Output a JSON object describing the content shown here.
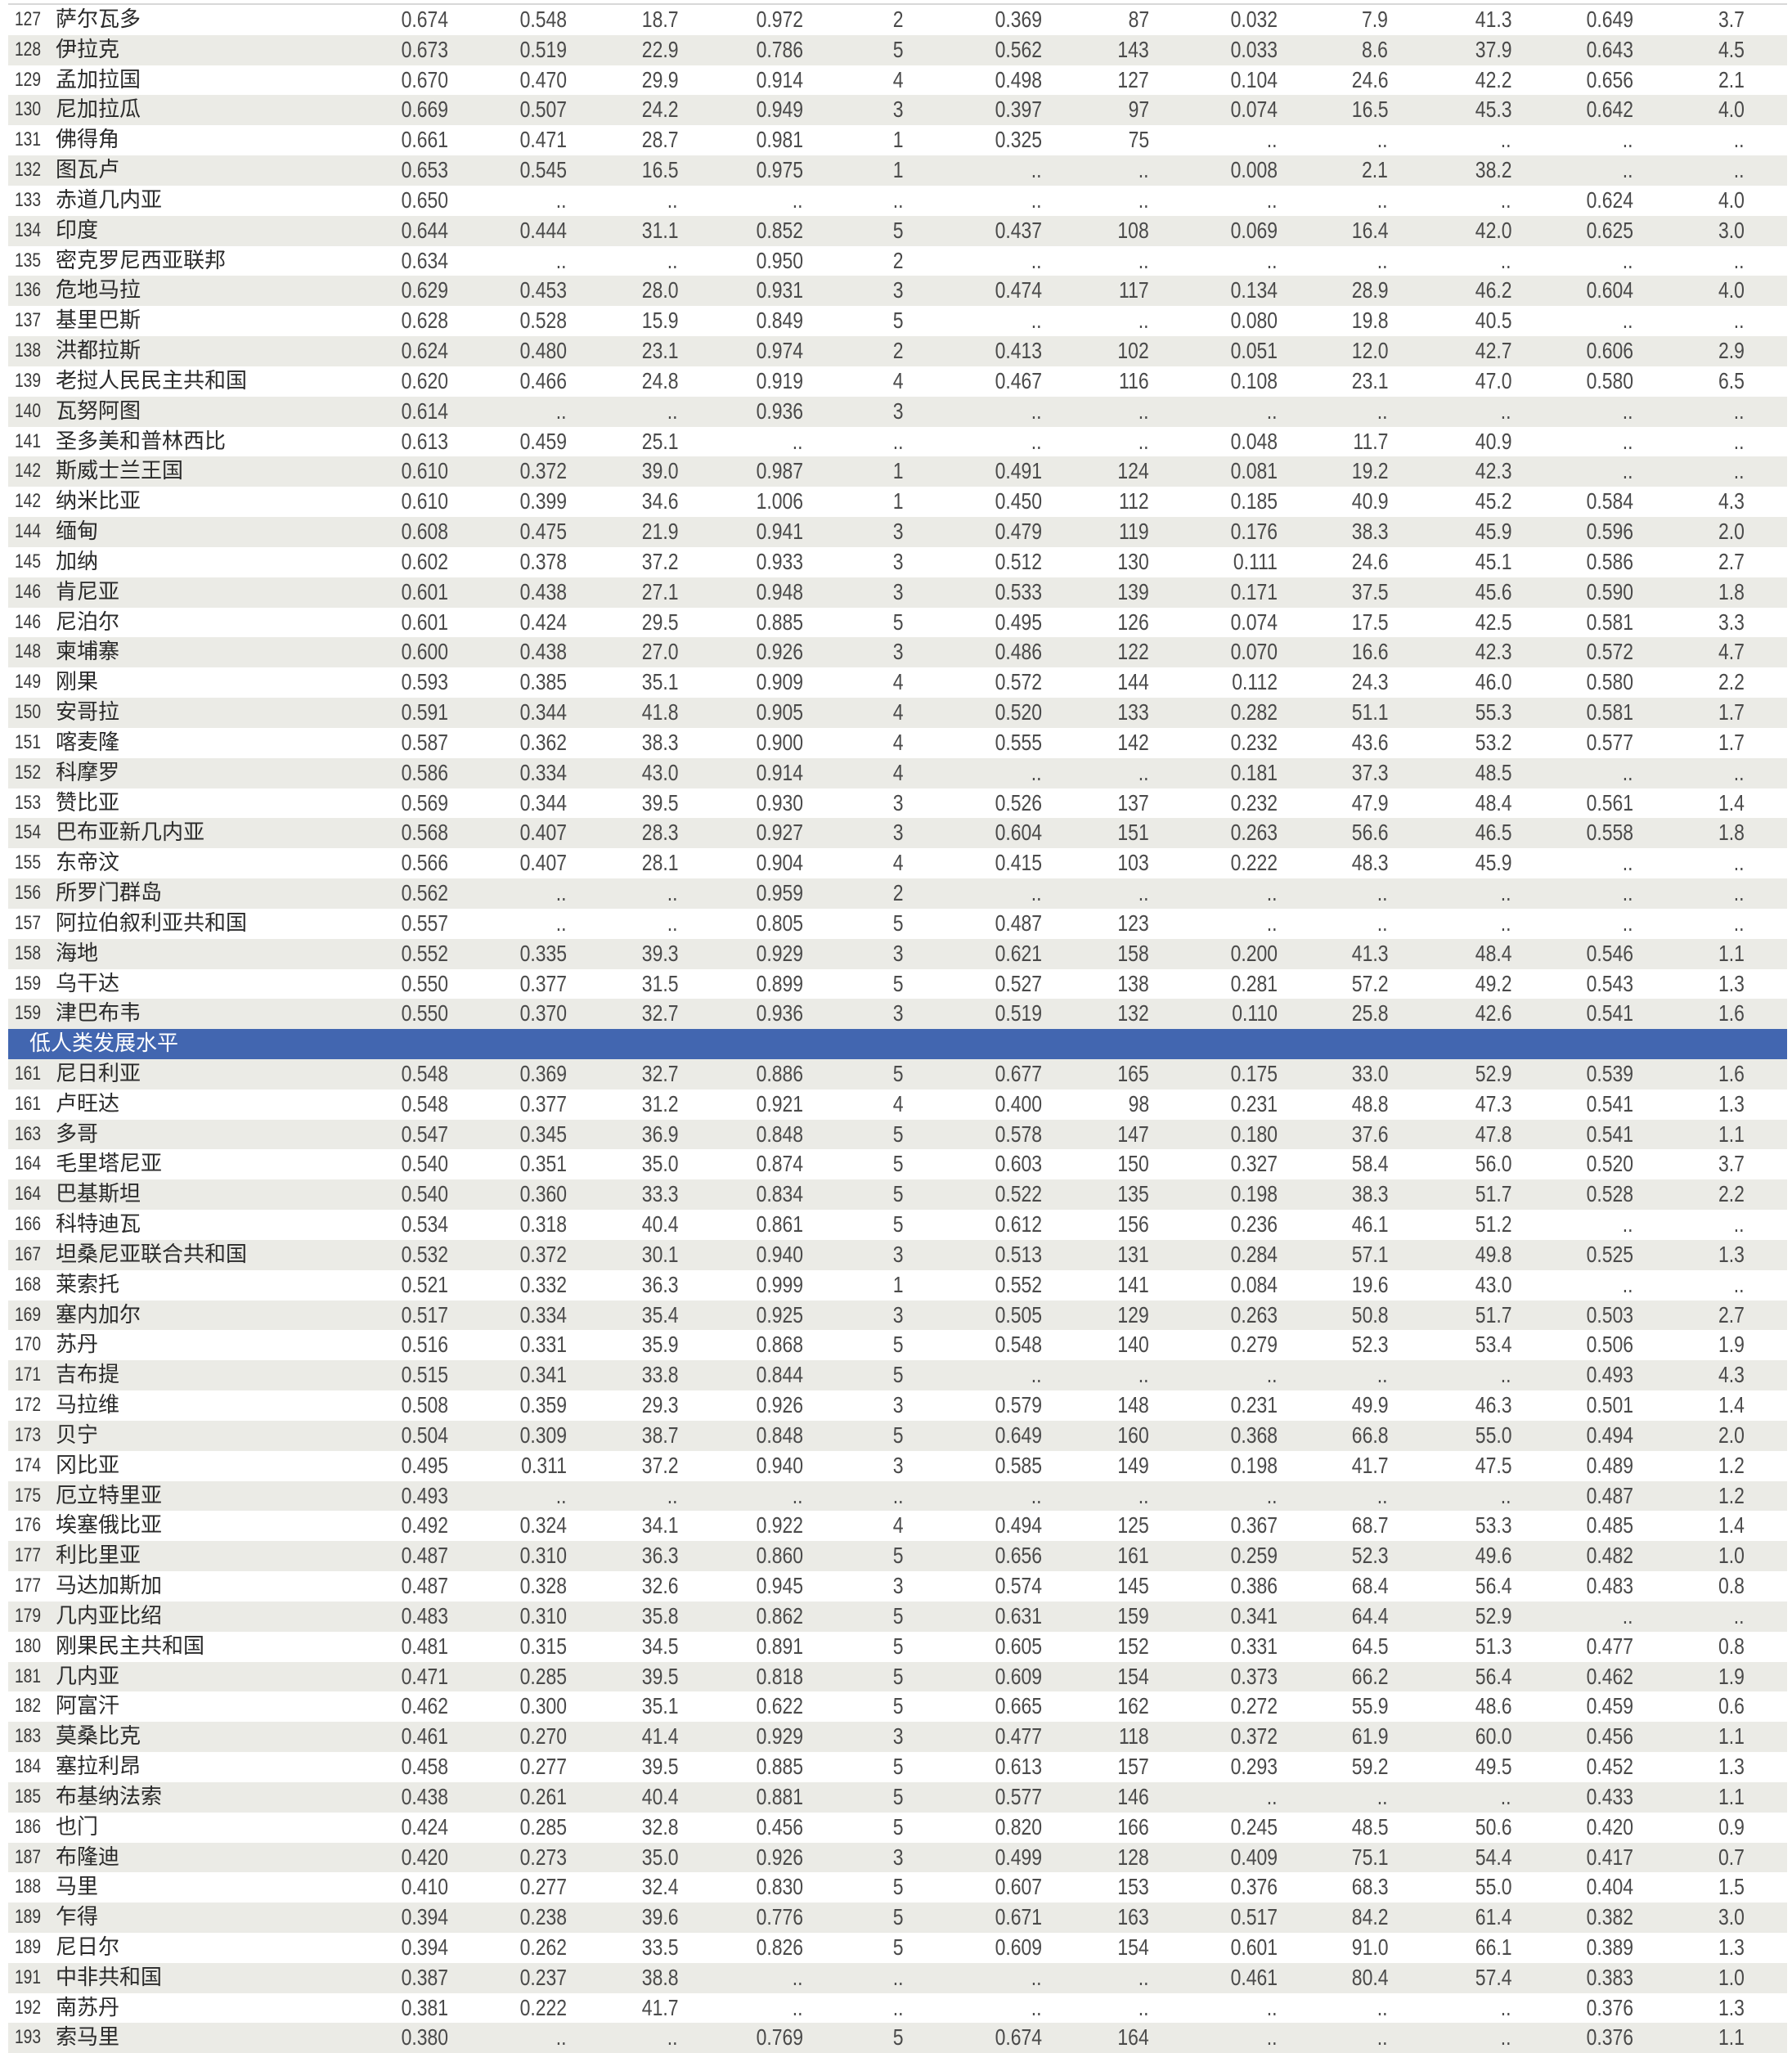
{
  "colors": {
    "group_header": "#4266b0",
    "stripe": "#ebebe6"
  },
  "rows_top": [
    [
      "127",
      "萨尔瓦多",
      "0.674",
      "0.548",
      "18.7",
      "0.972",
      "2",
      "0.369",
      "87",
      "0.032",
      "7.9",
      "41.3",
      "0.649",
      "3.7"
    ],
    [
      "128",
      "伊拉克",
      "0.673",
      "0.519",
      "22.9",
      "0.786",
      "5",
      "0.562",
      "143",
      "0.033",
      "8.6",
      "37.9",
      "0.643",
      "4.5"
    ],
    [
      "129",
      "孟加拉国",
      "0.670",
      "0.470",
      "29.9",
      "0.914",
      "4",
      "0.498",
      "127",
      "0.104",
      "24.6",
      "42.2",
      "0.656",
      "2.1"
    ],
    [
      "130",
      "尼加拉瓜",
      "0.669",
      "0.507",
      "24.2",
      "0.949",
      "3",
      "0.397",
      "97",
      "0.074",
      "16.5",
      "45.3",
      "0.642",
      "4.0"
    ],
    [
      "131",
      "佛得角",
      "0.661",
      "0.471",
      "28.7",
      "0.981",
      "1",
      "0.325",
      "75",
      "..",
      "..",
      "..",
      "..",
      ".."
    ],
    [
      "132",
      "图瓦卢",
      "0.653",
      "0.545",
      "16.5",
      "0.975",
      "1",
      "..",
      "..",
      "0.008",
      "2.1",
      "38.2",
      "..",
      ".."
    ],
    [
      "133",
      "赤道几内亚",
      "0.650",
      "..",
      "..",
      "..",
      "..",
      "..",
      "..",
      "..",
      "..",
      "..",
      "0.624",
      "4.0"
    ],
    [
      "134",
      "印度",
      "0.644",
      "0.444",
      "31.1",
      "0.852",
      "5",
      "0.437",
      "108",
      "0.069",
      "16.4",
      "42.0",
      "0.625",
      "3.0"
    ],
    [
      "135",
      "密克罗尼西亚联邦",
      "0.634",
      "..",
      "..",
      "0.950",
      "2",
      "..",
      "..",
      "..",
      "..",
      "..",
      "..",
      ".."
    ],
    [
      "136",
      "危地马拉",
      "0.629",
      "0.453",
      "28.0",
      "0.931",
      "3",
      "0.474",
      "117",
      "0.134",
      "28.9",
      "46.2",
      "0.604",
      "4.0"
    ],
    [
      "137",
      "基里巴斯",
      "0.628",
      "0.528",
      "15.9",
      "0.849",
      "5",
      "..",
      "..",
      "0.080",
      "19.8",
      "40.5",
      "..",
      ".."
    ],
    [
      "138",
      "洪都拉斯",
      "0.624",
      "0.480",
      "23.1",
      "0.974",
      "2",
      "0.413",
      "102",
      "0.051",
      "12.0",
      "42.7",
      "0.606",
      "2.9"
    ],
    [
      "139",
      "老挝人民民主共和国",
      "0.620",
      "0.466",
      "24.8",
      "0.919",
      "4",
      "0.467",
      "116",
      "0.108",
      "23.1",
      "47.0",
      "0.580",
      "6.5"
    ],
    [
      "140",
      "瓦努阿图",
      "0.614",
      "..",
      "..",
      "0.936",
      "3",
      "..",
      "..",
      "..",
      "..",
      "..",
      "..",
      ".."
    ],
    [
      "141",
      "圣多美和普林西比",
      "0.613",
      "0.459",
      "25.1",
      "..",
      "..",
      "..",
      "..",
      "0.048",
      "11.7",
      "40.9",
      "..",
      ".."
    ],
    [
      "142",
      "斯威士兰王国",
      "0.610",
      "0.372",
      "39.0",
      "0.987",
      "1",
      "0.491",
      "124",
      "0.081",
      "19.2",
      "42.3",
      "..",
      ".."
    ],
    [
      "142",
      "纳米比亚",
      "0.610",
      "0.399",
      "34.6",
      "1.006",
      "1",
      "0.450",
      "112",
      "0.185",
      "40.9",
      "45.2",
      "0.584",
      "4.3"
    ],
    [
      "144",
      "缅甸",
      "0.608",
      "0.475",
      "21.9",
      "0.941",
      "3",
      "0.479",
      "119",
      "0.176",
      "38.3",
      "45.9",
      "0.596",
      "2.0"
    ],
    [
      "145",
      "加纳",
      "0.602",
      "0.378",
      "37.2",
      "0.933",
      "3",
      "0.512",
      "130",
      "0.111",
      "24.6",
      "45.1",
      "0.586",
      "2.7"
    ],
    [
      "146",
      "肯尼亚",
      "0.601",
      "0.438",
      "27.1",
      "0.948",
      "3",
      "0.533",
      "139",
      "0.171",
      "37.5",
      "45.6",
      "0.590",
      "1.8"
    ],
    [
      "146",
      "尼泊尔",
      "0.601",
      "0.424",
      "29.5",
      "0.885",
      "5",
      "0.495",
      "126",
      "0.074",
      "17.5",
      "42.5",
      "0.581",
      "3.3"
    ],
    [
      "148",
      "柬埔寨",
      "0.600",
      "0.438",
      "27.0",
      "0.926",
      "3",
      "0.486",
      "122",
      "0.070",
      "16.6",
      "42.3",
      "0.572",
      "4.7"
    ],
    [
      "149",
      "刚果",
      "0.593",
      "0.385",
      "35.1",
      "0.909",
      "4",
      "0.572",
      "144",
      "0.112",
      "24.3",
      "46.0",
      "0.580",
      "2.2"
    ],
    [
      "150",
      "安哥拉",
      "0.591",
      "0.344",
      "41.8",
      "0.905",
      "4",
      "0.520",
      "133",
      "0.282",
      "51.1",
      "55.3",
      "0.581",
      "1.7"
    ],
    [
      "151",
      "喀麦隆",
      "0.587",
      "0.362",
      "38.3",
      "0.900",
      "4",
      "0.555",
      "142",
      "0.232",
      "43.6",
      "53.2",
      "0.577",
      "1.7"
    ],
    [
      "152",
      "科摩罗",
      "0.586",
      "0.334",
      "43.0",
      "0.914",
      "4",
      "..",
      "..",
      "0.181",
      "37.3",
      "48.5",
      "..",
      ".."
    ],
    [
      "153",
      "赞比亚",
      "0.569",
      "0.344",
      "39.5",
      "0.930",
      "3",
      "0.526",
      "137",
      "0.232",
      "47.9",
      "48.4",
      "0.561",
      "1.4"
    ],
    [
      "154",
      "巴布亚新几内亚",
      "0.568",
      "0.407",
      "28.3",
      "0.927",
      "3",
      "0.604",
      "151",
      "0.263",
      "56.6",
      "46.5",
      "0.558",
      "1.8"
    ],
    [
      "155",
      "东帝汶",
      "0.566",
      "0.407",
      "28.1",
      "0.904",
      "4",
      "0.415",
      "103",
      "0.222",
      "48.3",
      "45.9",
      "..",
      ".."
    ],
    [
      "156",
      "所罗门群岛",
      "0.562",
      "..",
      "..",
      "0.959",
      "2",
      "..",
      "..",
      "..",
      "..",
      "..",
      "..",
      ".."
    ],
    [
      "157",
      "阿拉伯叙利亚共和国",
      "0.557",
      "..",
      "..",
      "0.805",
      "5",
      "0.487",
      "123",
      "..",
      "..",
      "..",
      "..",
      ".."
    ],
    [
      "158",
      "海地",
      "0.552",
      "0.335",
      "39.3",
      "0.929",
      "3",
      "0.621",
      "158",
      "0.200",
      "41.3",
      "48.4",
      "0.546",
      "1.1"
    ],
    [
      "159",
      "乌干达",
      "0.550",
      "0.377",
      "31.5",
      "0.899",
      "5",
      "0.527",
      "138",
      "0.281",
      "57.2",
      "49.2",
      "0.543",
      "1.3"
    ],
    [
      "159",
      "津巴布韦",
      "0.550",
      "0.370",
      "32.7",
      "0.936",
      "3",
      "0.519",
      "132",
      "0.110",
      "25.8",
      "42.6",
      "0.541",
      "1.6"
    ]
  ],
  "group_header": "低人类发展水平",
  "rows_bottom": [
    [
      "161",
      "尼日利亚",
      "0.548",
      "0.369",
      "32.7",
      "0.886",
      "5",
      "0.677",
      "165",
      "0.175",
      "33.0",
      "52.9",
      "0.539",
      "1.6"
    ],
    [
      "161",
      "卢旺达",
      "0.548",
      "0.377",
      "31.2",
      "0.921",
      "4",
      "0.400",
      "98",
      "0.231",
      "48.8",
      "47.3",
      "0.541",
      "1.3"
    ],
    [
      "163",
      "多哥",
      "0.547",
      "0.345",
      "36.9",
      "0.848",
      "5",
      "0.578",
      "147",
      "0.180",
      "37.6",
      "47.8",
      "0.541",
      "1.1"
    ],
    [
      "164",
      "毛里塔尼亚",
      "0.540",
      "0.351",
      "35.0",
      "0.874",
      "5",
      "0.603",
      "150",
      "0.327",
      "58.4",
      "56.0",
      "0.520",
      "3.7"
    ],
    [
      "164",
      "巴基斯坦",
      "0.540",
      "0.360",
      "33.3",
      "0.834",
      "5",
      "0.522",
      "135",
      "0.198",
      "38.3",
      "51.7",
      "0.528",
      "2.2"
    ],
    [
      "166",
      "科特迪瓦",
      "0.534",
      "0.318",
      "40.4",
      "0.861",
      "5",
      "0.612",
      "156",
      "0.236",
      "46.1",
      "51.2",
      "..",
      ".."
    ],
    [
      "167",
      "坦桑尼亚联合共和国",
      "0.532",
      "0.372",
      "30.1",
      "0.940",
      "3",
      "0.513",
      "131",
      "0.284",
      "57.1",
      "49.8",
      "0.525",
      "1.3"
    ],
    [
      "168",
      "莱索托",
      "0.521",
      "0.332",
      "36.3",
      "0.999",
      "1",
      "0.552",
      "141",
      "0.084",
      "19.6",
      "43.0",
      "..",
      ".."
    ],
    [
      "169",
      "塞内加尔",
      "0.517",
      "0.334",
      "35.4",
      "0.925",
      "3",
      "0.505",
      "129",
      "0.263",
      "50.8",
      "51.7",
      "0.503",
      "2.7"
    ],
    [
      "170",
      "苏丹",
      "0.516",
      "0.331",
      "35.9",
      "0.868",
      "5",
      "0.548",
      "140",
      "0.279",
      "52.3",
      "53.4",
      "0.506",
      "1.9"
    ],
    [
      "171",
      "吉布提",
      "0.515",
      "0.341",
      "33.8",
      "0.844",
      "5",
      "..",
      "..",
      "..",
      "..",
      "..",
      "0.493",
      "4.3"
    ],
    [
      "172",
      "马拉维",
      "0.508",
      "0.359",
      "29.3",
      "0.926",
      "3",
      "0.579",
      "148",
      "0.231",
      "49.9",
      "46.3",
      "0.501",
      "1.4"
    ],
    [
      "173",
      "贝宁",
      "0.504",
      "0.309",
      "38.7",
      "0.848",
      "5",
      "0.649",
      "160",
      "0.368",
      "66.8",
      "55.0",
      "0.494",
      "2.0"
    ],
    [
      "174",
      "冈比亚",
      "0.495",
      "0.311",
      "37.2",
      "0.940",
      "3",
      "0.585",
      "149",
      "0.198",
      "41.7",
      "47.5",
      "0.489",
      "1.2"
    ],
    [
      "175",
      "厄立特里亚",
      "0.493",
      "..",
      "..",
      "..",
      "..",
      "..",
      "..",
      "..",
      "..",
      "..",
      "0.487",
      "1.2"
    ],
    [
      "176",
      "埃塞俄比亚",
      "0.492",
      "0.324",
      "34.1",
      "0.922",
      "4",
      "0.494",
      "125",
      "0.367",
      "68.7",
      "53.3",
      "0.485",
      "1.4"
    ],
    [
      "177",
      "利比里亚",
      "0.487",
      "0.310",
      "36.3",
      "0.860",
      "5",
      "0.656",
      "161",
      "0.259",
      "52.3",
      "49.6",
      "0.482",
      "1.0"
    ],
    [
      "177",
      "马达加斯加",
      "0.487",
      "0.328",
      "32.6",
      "0.945",
      "3",
      "0.574",
      "145",
      "0.386",
      "68.4",
      "56.4",
      "0.483",
      "0.8"
    ],
    [
      "179",
      "几内亚比绍",
      "0.483",
      "0.310",
      "35.8",
      "0.862",
      "5",
      "0.631",
      "159",
      "0.341",
      "64.4",
      "52.9",
      "..",
      ".."
    ],
    [
      "180",
      "刚果民主共和国",
      "0.481",
      "0.315",
      "34.5",
      "0.891",
      "5",
      "0.605",
      "152",
      "0.331",
      "64.5",
      "51.3",
      "0.477",
      "0.8"
    ],
    [
      "181",
      "几内亚",
      "0.471",
      "0.285",
      "39.5",
      "0.818",
      "5",
      "0.609",
      "154",
      "0.373",
      "66.2",
      "56.4",
      "0.462",
      "1.9"
    ],
    [
      "182",
      "阿富汗",
      "0.462",
      "0.300",
      "35.1",
      "0.622",
      "5",
      "0.665",
      "162",
      "0.272",
      "55.9",
      "48.6",
      "0.459",
      "0.6"
    ],
    [
      "183",
      "莫桑比克",
      "0.461",
      "0.270",
      "41.4",
      "0.929",
      "3",
      "0.477",
      "118",
      "0.372",
      "61.9",
      "60.0",
      "0.456",
      "1.1"
    ],
    [
      "184",
      "塞拉利昂",
      "0.458",
      "0.277",
      "39.5",
      "0.885",
      "5",
      "0.613",
      "157",
      "0.293",
      "59.2",
      "49.5",
      "0.452",
      "1.3"
    ],
    [
      "185",
      "布基纳法索",
      "0.438",
      "0.261",
      "40.4",
      "0.881",
      "5",
      "0.577",
      "146",
      "..",
      "..",
      "..",
      "0.433",
      "1.1"
    ],
    [
      "186",
      "也门",
      "0.424",
      "0.285",
      "32.8",
      "0.456",
      "5",
      "0.820",
      "166",
      "0.245",
      "48.5",
      "50.6",
      "0.420",
      "0.9"
    ],
    [
      "187",
      "布隆迪",
      "0.420",
      "0.273",
      "35.0",
      "0.926",
      "3",
      "0.499",
      "128",
      "0.409",
      "75.1",
      "54.4",
      "0.417",
      "0.7"
    ],
    [
      "188",
      "马里",
      "0.410",
      "0.277",
      "32.4",
      "0.830",
      "5",
      "0.607",
      "153",
      "0.376",
      "68.3",
      "55.0",
      "0.404",
      "1.5"
    ],
    [
      "189",
      "乍得",
      "0.394",
      "0.238",
      "39.6",
      "0.776",
      "5",
      "0.671",
      "163",
      "0.517",
      "84.2",
      "61.4",
      "0.382",
      "3.0"
    ],
    [
      "189",
      "尼日尔",
      "0.394",
      "0.262",
      "33.5",
      "0.826",
      "5",
      "0.609",
      "154",
      "0.601",
      "91.0",
      "66.1",
      "0.389",
      "1.3"
    ],
    [
      "191",
      "中非共和国",
      "0.387",
      "0.237",
      "38.8",
      "..",
      "..",
      "..",
      "..",
      "0.461",
      "80.4",
      "57.4",
      "0.383",
      "1.0"
    ],
    [
      "192",
      "南苏丹",
      "0.381",
      "0.222",
      "41.7",
      "..",
      "..",
      "..",
      "..",
      "..",
      "..",
      "..",
      "0.376",
      "1.3"
    ],
    [
      "193",
      "索马里",
      "0.380",
      "..",
      "..",
      "0.769",
      "5",
      "0.674",
      "164",
      "..",
      "..",
      "..",
      "0.376",
      "1.1"
    ]
  ]
}
